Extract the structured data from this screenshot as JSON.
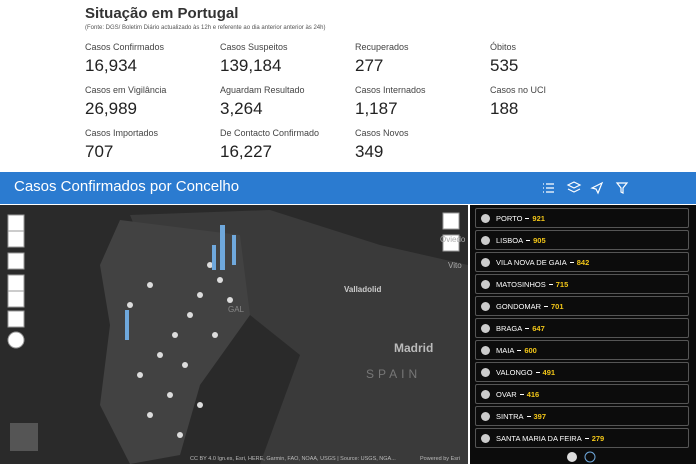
{
  "header": {
    "title": "Situação em Portugal",
    "source": "(Fonte: DGS/ Boletim Diário actualizado às 12h e referente ao dia anterior anterior às 24h)"
  },
  "stats": [
    {
      "label": "Casos Confirmados",
      "value": "16,934"
    },
    {
      "label": "Casos Suspeitos",
      "value": "139,184"
    },
    {
      "label": "Recuperados",
      "value": "277"
    },
    {
      "label": "Óbitos",
      "value": "535"
    },
    {
      "label": "Casos em Vigilância",
      "value": "26,989"
    },
    {
      "label": "Aguardam Resultado",
      "value": "3,264"
    },
    {
      "label": "Casos Internados",
      "value": "1,187"
    },
    {
      "label": "Casos no UCI",
      "value": "188"
    },
    {
      "label": "Casos Importados",
      "value": "707"
    },
    {
      "label": "De Contacto Confirmado",
      "value": "16,227"
    },
    {
      "label": "Casos Novos",
      "value": "349"
    }
  ],
  "panel": {
    "title": "Casos Confirmados por Concelho"
  },
  "map": {
    "labels": [
      "Oviedo",
      "Vito",
      "Valladolid",
      "Madrid",
      "SPAIN",
      "GAL"
    ],
    "attribution": "CC BY 4.0 Ign.es, Esri, HERE, Garmin, FAO, NOAA, USGS | Source: USGS, NGA...",
    "powered": "Powered by Esri"
  },
  "list": [
    {
      "name": "PORTO",
      "value": "921"
    },
    {
      "name": "LISBOA",
      "value": "905"
    },
    {
      "name": "VILA NOVA DE GAIA",
      "value": "842"
    },
    {
      "name": "MATOSINHOS",
      "value": "715"
    },
    {
      "name": "GONDOMAR",
      "value": "701"
    },
    {
      "name": "BRAGA",
      "value": "647"
    },
    {
      "name": "MAIA",
      "value": "600"
    },
    {
      "name": "VALONGO",
      "value": "491"
    },
    {
      "name": "OVAR",
      "value": "416"
    },
    {
      "name": "SINTRA",
      "value": "397"
    },
    {
      "name": "SANTA MARIA DA FEIRA",
      "value": "279"
    }
  ]
}
